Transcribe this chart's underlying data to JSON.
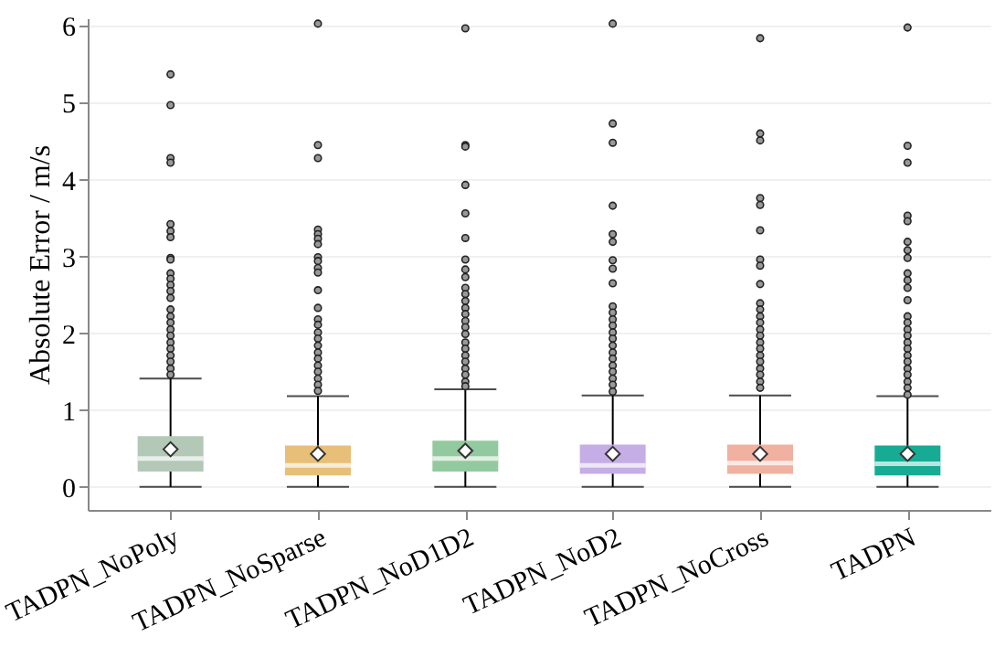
{
  "chart_data": {
    "type": "box",
    "ylabel": "Absolute Error / m/s",
    "categories": [
      "TADPN_NoPoly",
      "TADPN_NoSparse",
      "TADPN_NoD1D2",
      "TADPN_NoD2",
      "TADPN_NoCross",
      "TADPN"
    ],
    "colors": [
      "#b3c8b7",
      "#e8bf78",
      "#93c99e",
      "#c5aee6",
      "#f1b1a0",
      "#17ab94"
    ],
    "ylim": [
      -0.3,
      6.1
    ],
    "yticks": [
      0,
      1,
      2,
      3,
      4,
      5,
      6
    ],
    "grid": "y",
    "marker": "diamond",
    "boxes": [
      {
        "low": 0,
        "q1": 0.2,
        "median": 0.37,
        "q3": 0.66,
        "high": 1.41,
        "mean": 0.49,
        "outliers": [
          5.37,
          4.97,
          4.28,
          4.22,
          3.42,
          3.33,
          3.25,
          2.98,
          2.96,
          2.78,
          2.71,
          2.63,
          2.55,
          2.46,
          2.31,
          2.22,
          2.14,
          2.05,
          1.97,
          1.88,
          1.8,
          1.71,
          1.63,
          1.54,
          1.46
        ]
      },
      {
        "low": 0,
        "q1": 0.15,
        "median": 0.28,
        "q3": 0.54,
        "high": 1.18,
        "mean": 0.43,
        "outliers": [
          6.03,
          4.45,
          4.28,
          3.35,
          3.29,
          3.23,
          3.16,
          2.99,
          2.94,
          2.85,
          2.79,
          2.56,
          2.33,
          2.18,
          2.11,
          2.01,
          1.93,
          1.84,
          1.75,
          1.67,
          1.58,
          1.5,
          1.41,
          1.33,
          1.25
        ]
      },
      {
        "low": 0,
        "q1": 0.2,
        "median": 0.37,
        "q3": 0.6,
        "high": 1.27,
        "mean": 0.47,
        "outliers": [
          5.97,
          4.45,
          4.43,
          3.93,
          3.56,
          3.24,
          2.96,
          2.83,
          2.73,
          2.59,
          2.51,
          2.42,
          2.33,
          2.25,
          2.16,
          2.08,
          1.99,
          1.88,
          1.8,
          1.71,
          1.63,
          1.54,
          1.46,
          1.37,
          1.31
        ]
      },
      {
        "low": 0,
        "q1": 0.17,
        "median": 0.28,
        "q3": 0.55,
        "high": 1.19,
        "mean": 0.43,
        "outliers": [
          6.03,
          4.73,
          4.48,
          3.66,
          3.29,
          3.19,
          2.95,
          2.84,
          2.65,
          2.35,
          2.27,
          2.18,
          2.1,
          2.01,
          1.93,
          1.84,
          1.75,
          1.67,
          1.58,
          1.5,
          1.41,
          1.33,
          1.24
        ]
      },
      {
        "low": 0,
        "q1": 0.17,
        "median": 0.31,
        "q3": 0.55,
        "high": 1.19,
        "mean": 0.43,
        "outliers": [
          5.84,
          4.6,
          4.51,
          3.76,
          3.67,
          3.34,
          2.96,
          2.88,
          2.64,
          2.39,
          2.31,
          2.22,
          2.14,
          2.05,
          1.97,
          1.88,
          1.8,
          1.71,
          1.63,
          1.54,
          1.46,
          1.37,
          1.29
        ]
      },
      {
        "low": 0,
        "q1": 0.15,
        "median": 0.3,
        "q3": 0.54,
        "high": 1.18,
        "mean": 0.43,
        "outliers": [
          5.98,
          4.44,
          4.22,
          3.53,
          3.46,
          3.19,
          3.08,
          2.98,
          2.78,
          2.69,
          2.59,
          2.43,
          2.22,
          2.14,
          2.05,
          1.97,
          1.88,
          1.8,
          1.71,
          1.63,
          1.54,
          1.46,
          1.37,
          1.29,
          1.2
        ]
      }
    ]
  }
}
